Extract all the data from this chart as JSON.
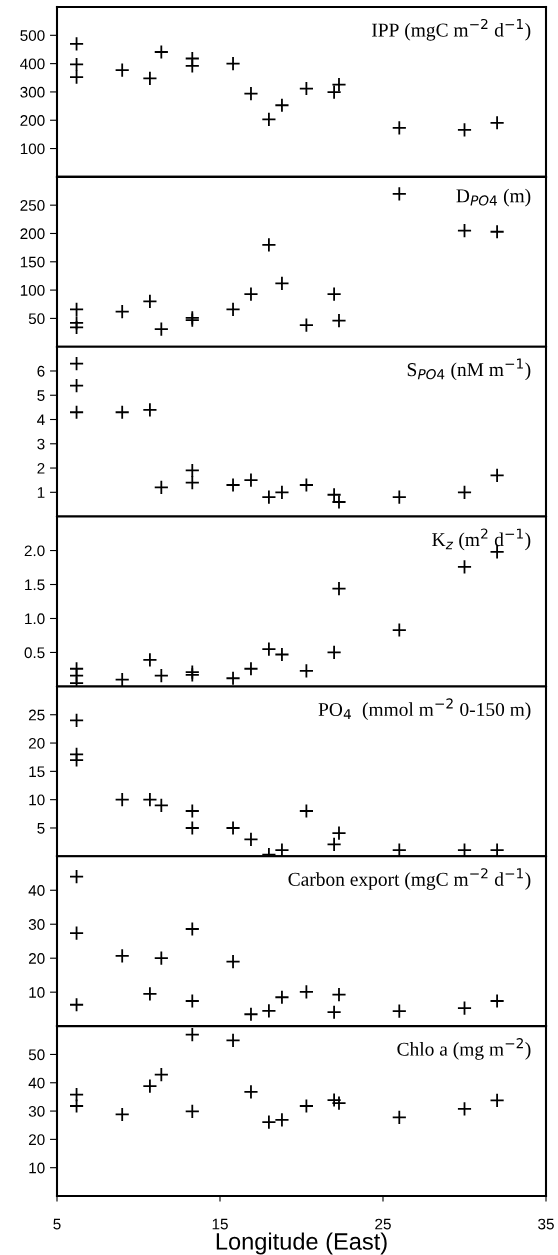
{
  "chart_data": [
    {
      "type": "scatter",
      "title": "IPP (mgC m$^{−2}$ d$^{−1}$)",
      "marker": "cross",
      "color": "#000000",
      "tick_labels": "y",
      "xlim": [
        5,
        35
      ],
      "xticks": [
        5,
        15,
        25,
        35
      ],
      "ylim": [
        0,
        600
      ],
      "yticks": [
        100,
        200,
        300,
        400,
        500
      ],
      "x": [
        6.2,
        6.2,
        6.2,
        9.0,
        10.7,
        11.4,
        13.3,
        13.3,
        15.8,
        16.9,
        18.0,
        18.8,
        20.3,
        22.0,
        22.3,
        26.0,
        30.0,
        32.0
      ],
      "values": [
        470,
        397,
        352,
        377,
        348,
        441,
        418,
        392,
        400,
        294,
        203,
        253,
        312,
        299,
        326,
        173,
        166,
        191
      ]
    },
    {
      "type": "scatter",
      "title": "D$_{PO4}$ (m)",
      "marker": "cross",
      "color": "#000000",
      "tick_labels": "y",
      "xlim": [
        5,
        35
      ],
      "xticks": [
        5,
        15,
        25,
        35
      ],
      "ylim": [
        0,
        300
      ],
      "yticks": [
        50,
        100,
        150,
        200,
        250
      ],
      "x": [
        6.2,
        6.2,
        6.2,
        9.0,
        10.7,
        11.4,
        13.3,
        13.3,
        15.8,
        16.9,
        18.0,
        18.8,
        20.3,
        22.0,
        22.3,
        26.0,
        30.0,
        32.0
      ],
      "values": [
        66,
        42,
        34,
        62,
        80,
        31,
        51,
        47,
        66,
        93,
        180,
        112,
        38,
        93,
        46,
        270,
        205,
        203
      ]
    },
    {
      "type": "scatter",
      "title": "S$_{PO4}$ (nM m$^{−1}$)",
      "marker": "cross",
      "color": "#000000",
      "tick_labels": "y",
      "xlim": [
        5,
        35
      ],
      "xticks": [
        5,
        15,
        25,
        35
      ],
      "ylim": [
        0,
        7
      ],
      "yticks": [
        1,
        2,
        3,
        4,
        5,
        6
      ],
      "x": [
        6.2,
        6.2,
        6.2,
        9.0,
        10.7,
        11.4,
        13.3,
        13.3,
        15.8,
        16.9,
        18.0,
        18.8,
        20.3,
        22.0,
        22.3,
        26.0,
        30.0,
        32.0
      ],
      "values": [
        6.3,
        5.4,
        4.3,
        4.3,
        4.4,
        1.2,
        1.9,
        1.4,
        1.3,
        1.5,
        0.8,
        1.0,
        1.3,
        0.9,
        0.6,
        0.8,
        1.0,
        1.7
      ]
    },
    {
      "type": "scatter",
      "title": "K$_{z}$ (m$^{2}$ d$^{−1}$)",
      "marker": "cross",
      "color": "#000000",
      "tick_labels": "y",
      "xlim": [
        5,
        35
      ],
      "xticks": [
        5,
        15,
        25,
        35
      ],
      "ylim": [
        0,
        2.5
      ],
      "yticks": [
        {
          "value": 0.5,
          "label": "0.5"
        },
        {
          "value": 1,
          "label": "1.0"
        },
        {
          "value": 1.5,
          "label": "1.5"
        },
        {
          "value": 2,
          "label": "2.0"
        }
      ],
      "x": [
        6.2,
        6.2,
        6.2,
        9.0,
        10.7,
        11.4,
        13.3,
        13.3,
        15.8,
        16.9,
        18.0,
        18.8,
        20.3,
        22.0,
        22.3,
        26.0,
        30.0,
        32.0
      ],
      "values": [
        0.26,
        0.16,
        0.05,
        0.1,
        0.39,
        0.16,
        0.21,
        0.17,
        0.12,
        0.26,
        0.55,
        0.47,
        0.23,
        0.5,
        1.44,
        0.83,
        1.76,
        1.98
      ]
    },
    {
      "type": "scatter",
      "title": "PO$_{4}$  (mmol m$^{−2}$ 0-150 m)",
      "marker": "cross",
      "color": "#000000",
      "tick_labels": "y",
      "xlim": [
        5,
        35
      ],
      "xticks": [
        5,
        15,
        25,
        35
      ],
      "ylim": [
        0,
        30
      ],
      "yticks": [
        5,
        10,
        15,
        20,
        25
      ],
      "x": [
        6.2,
        6.2,
        6.2,
        9.0,
        10.7,
        11.4,
        13.3,
        13.3,
        15.8,
        16.9,
        18.0,
        18.8,
        20.3,
        22.0,
        22.3,
        26.0,
        30.0,
        32.0
      ],
      "values": [
        24,
        18,
        17,
        10,
        10,
        9,
        8,
        5,
        5,
        3,
        0.3,
        1.1,
        8,
        2.1,
        4.1,
        1.1,
        1.1,
        1.1
      ]
    },
    {
      "type": "scatter",
      "title": "Carbon export (mgC m$^{−2}$ d$^{−1}$)",
      "marker": "cross",
      "color": "#000000",
      "tick_labels": "y",
      "xlim": [
        5,
        35
      ],
      "xticks": [
        5,
        15,
        25,
        35
      ],
      "ylim": [
        0,
        50
      ],
      "yticks": [
        10,
        20,
        30,
        40
      ],
      "x": [
        6.2,
        6.2,
        6.2,
        9.0,
        10.7,
        11.4,
        13.3,
        13.3,
        15.8,
        16.9,
        18.0,
        18.8,
        20.3,
        22.0,
        22.3,
        26.0,
        30.0,
        32.0
      ],
      "values": [
        44,
        27.4,
        6.3,
        20.7,
        9.5,
        20,
        28.6,
        7.4,
        19,
        3.5,
        4.5,
        8.5,
        10.1,
        4.1,
        9.3,
        4.4,
        5.3,
        7.4
      ]
    },
    {
      "type": "scatter",
      "title": "Chlo a (mg m$^{−2}$)",
      "xlabel": "Longitude (East)",
      "marker": "cross",
      "color": "#000000",
      "xlim": [
        5,
        35
      ],
      "xticks": [
        5,
        15,
        25,
        35
      ],
      "ylim": [
        0,
        60
      ],
      "yticks": [
        10,
        20,
        30,
        40,
        50
      ],
      "x": [
        6.2,
        6.2,
        9.0,
        10.7,
        11.4,
        13.3,
        13.3,
        15.8,
        16.9,
        18.0,
        18.8,
        20.3,
        22.0,
        22.3,
        26.0,
        30.0,
        32.0
      ],
      "values": [
        35.8,
        31.8,
        28.8,
        38.8,
        42.9,
        57,
        29.9,
        55,
        36.8,
        26.1,
        26.9,
        31.8,
        33.9,
        32.8,
        27.8,
        30.8,
        33.8
      ]
    }
  ]
}
